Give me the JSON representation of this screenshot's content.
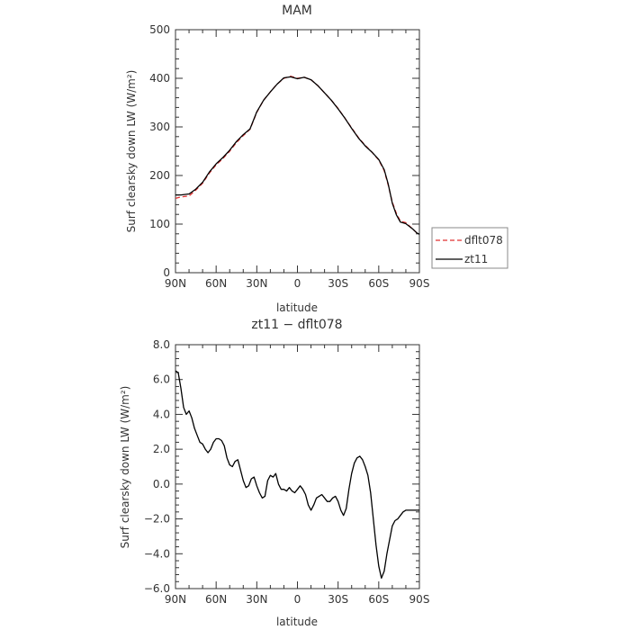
{
  "chart_data": [
    {
      "type": "line",
      "title": "MAM",
      "xlabel": "latitude",
      "ylabel": "Surf clearsky down LW (W/m²)",
      "xticks": [
        "90N",
        "60N",
        "30N",
        "0",
        "30S",
        "60S",
        "90S"
      ],
      "xlim": [
        90,
        -90
      ],
      "ylim": [
        0,
        500
      ],
      "yticks": [
        "0",
        "100",
        "200",
        "300",
        "400",
        "500"
      ],
      "legend_position": "right",
      "grid": false,
      "series": [
        {
          "name": "dflt078",
          "color": "#e03030",
          "style": "dashed",
          "x": [
            90,
            86,
            80,
            75,
            70,
            65,
            60,
            55,
            50,
            45,
            40,
            35,
            30,
            25,
            20,
            15,
            10,
            5,
            0,
            -5,
            -10,
            -15,
            -20,
            -25,
            -30,
            -35,
            -40,
            -45,
            -50,
            -55,
            -60,
            -64,
            -67,
            -70,
            -73,
            -76,
            -80,
            -85,
            -88,
            -90
          ],
          "y": [
            153,
            156,
            158,
            170,
            184,
            205,
            222,
            235,
            250,
            268,
            282,
            295,
            330,
            355,
            372,
            388,
            400,
            404,
            400,
            402,
            397,
            385,
            370,
            355,
            338,
            318,
            298,
            278,
            262,
            248,
            232,
            210,
            180,
            145,
            122,
            106,
            103,
            90,
            82,
            80
          ]
        },
        {
          "name": "zt11",
          "color": "#000000",
          "style": "solid",
          "x": [
            90,
            86,
            80,
            75,
            70,
            65,
            60,
            55,
            50,
            45,
            40,
            35,
            30,
            25,
            20,
            15,
            10,
            5,
            0,
            -5,
            -10,
            -15,
            -20,
            -25,
            -30,
            -35,
            -40,
            -45,
            -50,
            -55,
            -60,
            -64,
            -67,
            -70,
            -73,
            -76,
            -80,
            -85,
            -88,
            -90
          ],
          "y": [
            160,
            160,
            162,
            172,
            186,
            207,
            224,
            237,
            252,
            270,
            284,
            296,
            331,
            355,
            372,
            388,
            401,
            403,
            399,
            402,
            397,
            385,
            370,
            355,
            337,
            318,
            297,
            277,
            261,
            248,
            233,
            212,
            182,
            143,
            119,
            104,
            101,
            90,
            82,
            79
          ]
        }
      ]
    },
    {
      "type": "line",
      "title": "zt11 − dflt078",
      "xlabel": "latitude",
      "ylabel": "Surf clearsky down LW (W/m²)",
      "xticks": [
        "90N",
        "60N",
        "30N",
        "0",
        "30S",
        "60S",
        "90S"
      ],
      "xlim": [
        90,
        -90
      ],
      "ylim": [
        -6,
        8
      ],
      "yticks": [
        "−6.0",
        "−4.0",
        "−2.0",
        "0.0",
        "2.0",
        "4.0",
        "6.0",
        "8.0"
      ],
      "grid": false,
      "series": [
        {
          "color": "#000000",
          "style": "solid",
          "x": [
            90,
            88,
            86,
            84,
            82,
            80,
            78,
            76,
            74,
            72,
            70,
            68,
            66,
            64,
            62,
            60,
            58,
            56,
            54,
            52,
            50,
            48,
            46,
            44,
            42,
            40,
            38,
            36,
            34,
            32,
            30,
            28,
            26,
            24,
            22,
            20,
            18,
            16,
            14,
            12,
            10,
            8,
            6,
            4,
            2,
            0,
            -2,
            -4,
            -6,
            -8,
            -10,
            -12,
            -14,
            -16,
            -18,
            -20,
            -22,
            -24,
            -26,
            -28,
            -30,
            -32,
            -34,
            -36,
            -38,
            -40,
            -42,
            -44,
            -46,
            -48,
            -50,
            -52,
            -54,
            -56,
            -58,
            -60,
            -62,
            -64,
            -66,
            -68,
            -70,
            -72,
            -74,
            -76,
            -78,
            -80,
            -82,
            -84,
            -86,
            -88,
            -90
          ],
          "y": [
            6.5,
            6.4,
            5.5,
            4.4,
            4.0,
            4.2,
            3.8,
            3.2,
            2.8,
            2.4,
            2.3,
            2.0,
            1.8,
            2.0,
            2.4,
            2.6,
            2.6,
            2.5,
            2.2,
            1.5,
            1.1,
            1.0,
            1.3,
            1.4,
            0.8,
            0.2,
            -0.2,
            -0.1,
            0.3,
            0.4,
            -0.1,
            -0.5,
            -0.8,
            -0.7,
            0.2,
            0.5,
            0.4,
            0.6,
            0.0,
            -0.3,
            -0.3,
            -0.4,
            -0.2,
            -0.4,
            -0.5,
            -0.3,
            -0.1,
            -0.3,
            -0.6,
            -1.2,
            -1.5,
            -1.2,
            -0.8,
            -0.7,
            -0.6,
            -0.8,
            -1.0,
            -1.0,
            -0.8,
            -0.7,
            -1.0,
            -1.5,
            -1.8,
            -1.4,
            -0.3,
            0.6,
            1.2,
            1.5,
            1.6,
            1.4,
            1.0,
            0.5,
            -0.5,
            -2.0,
            -3.5,
            -4.7,
            -5.4,
            -5.0,
            -4.0,
            -3.2,
            -2.4,
            -2.1,
            -2.0,
            -1.8,
            -1.6,
            -1.5,
            -1.5,
            -1.5,
            -1.5,
            -1.5,
            -1.5
          ]
        }
      ]
    }
  ]
}
